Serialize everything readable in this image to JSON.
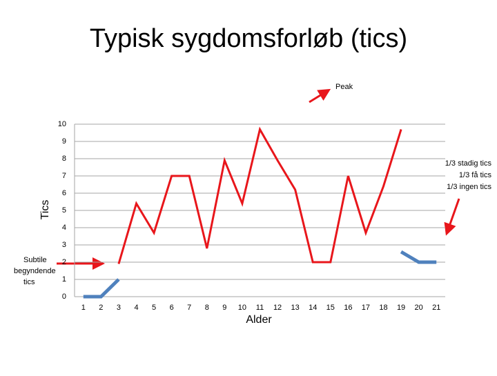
{
  "chart_data": {
    "type": "line",
    "title": "Typisk sygdomsforløb (tics)",
    "x_label": "Alder",
    "y_label": "Tics",
    "categories": [
      "1",
      "2",
      "3",
      "4",
      "5",
      "6",
      "7",
      "8",
      "9",
      "10",
      "11",
      "12",
      "13",
      "14",
      "15",
      "16",
      "17",
      "18",
      "19",
      "20",
      "21"
    ],
    "series": [
      {
        "color": "#e8161b",
        "values": [
          null,
          null,
          1.9,
          5.4,
          3.7,
          7,
          7,
          2.8,
          7.9,
          5.4,
          9.7,
          7.9,
          6.2,
          2,
          2,
          7,
          3.7,
          6.4,
          9.7,
          null,
          null
        ]
      },
      {
        "color": "#4f81bd",
        "values": [
          0,
          0,
          1,
          null,
          null,
          null,
          null,
          null,
          null,
          null,
          null,
          null,
          null,
          null,
          null,
          null,
          null,
          null,
          2.6,
          2,
          2
        ]
      }
    ],
    "ylim": [
      0,
      10
    ],
    "yticks": [
      0,
      1,
      2,
      3,
      4,
      5,
      6,
      7,
      8,
      9,
      10
    ],
    "grid": true,
    "annotations": {
      "peak": "Peak",
      "end": [
        "1/3 stadig tics",
        "1/3 få tics",
        "1/3 ingen tics"
      ],
      "start": [
        "Subtile",
        "begyndende",
        "tics"
      ]
    }
  }
}
